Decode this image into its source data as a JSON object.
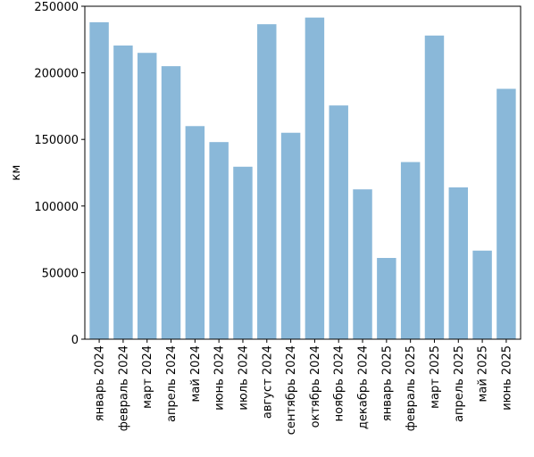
{
  "chart_data": {
    "type": "bar",
    "title": "",
    "xlabel": "",
    "ylabel": "км",
    "ylim": [
      0,
      250000
    ],
    "yticks": [
      0,
      50000,
      100000,
      150000,
      200000,
      250000
    ],
    "ytick_labels": [
      "0",
      "50000",
      "100000",
      "150000",
      "200000",
      "250000"
    ],
    "grid": false,
    "legend": null,
    "bar_color": "#8ab8d9",
    "categories": [
      "январь 2024",
      "февраль 2024",
      "март 2024",
      "апрель 2024",
      "май 2024",
      "июнь 2024",
      "июль 2024",
      "август 2024",
      "сентябрь 2024",
      "октябрь 2024",
      "ноябрь 2024",
      "декабрь 2024",
      "январь 2025",
      "февраль 2025",
      "март 2025",
      "апрель 2025",
      "май 2025",
      "июнь 2025"
    ],
    "values": [
      238000,
      220500,
      215000,
      205000,
      160000,
      148000,
      129500,
      236500,
      155000,
      241500,
      175500,
      112500,
      61000,
      133000,
      228000,
      114000,
      66500,
      188000
    ]
  }
}
